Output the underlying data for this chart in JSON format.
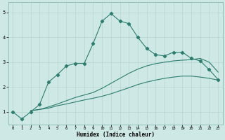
{
  "xlabel": "Humidex (Indice chaleur)",
  "background_color": "#cde8e5",
  "grid_color": "#b8d4d2",
  "line_color": "#2e7d6e",
  "xlim": [
    -0.5,
    23.5
  ],
  "ylim": [
    0.5,
    5.4
  ],
  "x_ticks": [
    0,
    1,
    2,
    3,
    4,
    5,
    6,
    7,
    8,
    9,
    10,
    11,
    12,
    13,
    14,
    15,
    16,
    17,
    18,
    19,
    20,
    21,
    22,
    23
  ],
  "y_ticks": [
    1,
    2,
    3,
    4,
    5
  ],
  "series1_x": [
    0,
    1,
    2,
    3,
    4,
    5,
    6,
    7,
    8,
    9,
    10,
    11,
    12,
    13,
    14,
    15,
    16,
    17,
    18,
    19,
    20,
    21,
    22,
    23
  ],
  "series1_y": [
    1.0,
    0.72,
    1.0,
    1.3,
    2.2,
    2.5,
    2.85,
    2.95,
    2.95,
    3.75,
    4.65,
    4.95,
    4.65,
    4.55,
    4.0,
    3.55,
    3.3,
    3.25,
    3.4,
    3.4,
    3.15,
    3.05,
    2.7,
    2.3
  ],
  "series2_x": [
    2,
    3,
    4,
    5,
    6,
    7,
    8,
    9,
    10,
    11,
    12,
    13,
    14,
    15,
    16,
    17,
    18,
    19,
    20,
    21,
    22,
    23
  ],
  "series2_y": [
    1.05,
    1.1,
    1.15,
    1.25,
    1.32,
    1.4,
    1.48,
    1.55,
    1.63,
    1.73,
    1.85,
    1.97,
    2.1,
    2.2,
    2.28,
    2.35,
    2.4,
    2.44,
    2.44,
    2.4,
    2.35,
    2.28
  ],
  "series3_x": [
    2,
    3,
    4,
    5,
    6,
    7,
    8,
    9,
    10,
    11,
    12,
    13,
    14,
    15,
    16,
    17,
    18,
    19,
    20,
    21,
    22,
    23
  ],
  "series3_y": [
    1.05,
    1.1,
    1.2,
    1.32,
    1.45,
    1.58,
    1.68,
    1.78,
    1.95,
    2.15,
    2.35,
    2.55,
    2.72,
    2.85,
    2.94,
    3.0,
    3.05,
    3.08,
    3.1,
    3.15,
    3.0,
    2.6
  ]
}
